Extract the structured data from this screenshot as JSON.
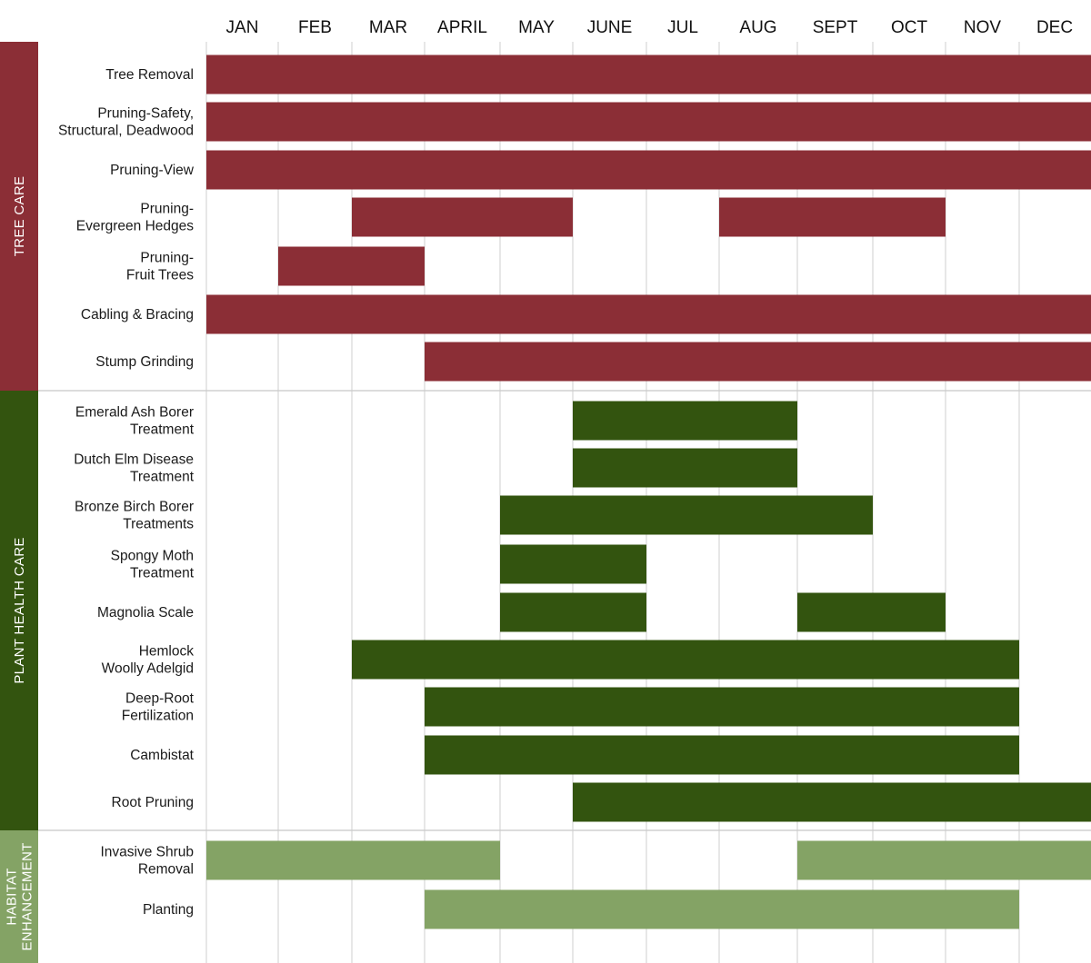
{
  "chart_data": {
    "type": "gantt",
    "title": "",
    "months": [
      "JAN",
      "FEB",
      "MAR",
      "APRIL",
      "MAY",
      "JUNE",
      "JUL",
      "AUG",
      "SEPT",
      "OCT",
      "NOV",
      "DEC"
    ],
    "groups": [
      {
        "label": "TREE CARE",
        "color": "#8b2e36",
        "tasks": [
          {
            "label": [
              "Tree Removal"
            ],
            "segments": [
              [
                1,
                12
              ]
            ]
          },
          {
            "label": [
              "Pruning-Safety,",
              "Structural, Deadwood"
            ],
            "segments": [
              [
                1,
                12
              ]
            ]
          },
          {
            "label": [
              "Pruning-View"
            ],
            "segments": [
              [
                1,
                12
              ]
            ]
          },
          {
            "label": [
              "Pruning-",
              "Evergreen Hedges"
            ],
            "segments": [
              [
                3,
                5
              ],
              [
                8,
                10
              ]
            ]
          },
          {
            "label": [
              "Pruning-",
              "Fruit Trees"
            ],
            "segments": [
              [
                2,
                3
              ]
            ]
          },
          {
            "label": [
              "Cabling & Bracing"
            ],
            "segments": [
              [
                1,
                12
              ]
            ]
          },
          {
            "label": [
              "Stump Grinding"
            ],
            "segments": [
              [
                4,
                12
              ]
            ]
          }
        ]
      },
      {
        "label": "PLANT HEALTH CARE",
        "color": "#33540f",
        "tasks": [
          {
            "label": [
              "Emerald Ash Borer",
              "Treatment"
            ],
            "segments": [
              [
                6,
                8
              ]
            ]
          },
          {
            "label": [
              "Dutch Elm Disease",
              "Treatment"
            ],
            "segments": [
              [
                6,
                8
              ]
            ]
          },
          {
            "label": [
              "Bronze Birch Borer",
              "Treatments"
            ],
            "segments": [
              [
                5,
                9
              ]
            ]
          },
          {
            "label": [
              "Spongy Moth",
              "Treatment"
            ],
            "segments": [
              [
                5,
                6
              ]
            ]
          },
          {
            "label": [
              "Magnolia Scale"
            ],
            "segments": [
              [
                5,
                6
              ],
              [
                9,
                10
              ]
            ]
          },
          {
            "label": [
              "Hemlock",
              "Woolly Adelgid"
            ],
            "segments": [
              [
                3,
                11
              ]
            ]
          },
          {
            "label": [
              "Deep-Root",
              "Fertilization"
            ],
            "segments": [
              [
                4,
                11
              ]
            ]
          },
          {
            "label": [
              "Cambistat"
            ],
            "segments": [
              [
                4,
                11
              ]
            ]
          },
          {
            "label": [
              "Root Pruning"
            ],
            "segments": [
              [
                6,
                12
              ]
            ]
          }
        ]
      },
      {
        "label": [
          "HABITAT",
          "ENHANCEMENT"
        ],
        "color": "#84a365",
        "tasks": [
          {
            "label": [
              "Invasive Shrub",
              "Removal"
            ],
            "segments": [
              [
                1,
                4
              ],
              [
                9,
                12
              ]
            ]
          },
          {
            "label": [
              "Planting"
            ],
            "segments": [
              [
                4,
                11
              ]
            ]
          }
        ]
      }
    ]
  }
}
